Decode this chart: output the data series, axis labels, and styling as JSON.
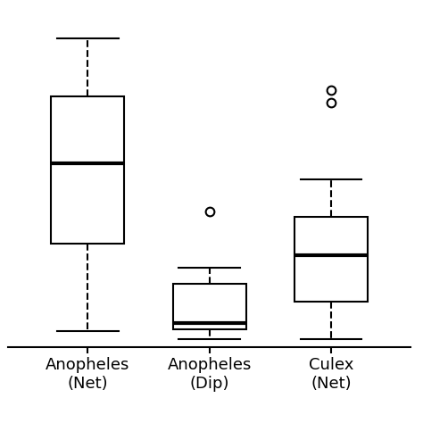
{
  "groups": [
    "Anopheles\n(Net)",
    "Anopheles\n(Dip)",
    "Culex\n(Net)"
  ],
  "boxes": [
    {
      "whisker_low": 0.03,
      "q1": 0.3,
      "median": 0.55,
      "q3": 0.76,
      "whisker_high": 0.94,
      "outliers": []
    },
    {
      "whisker_low": 0.005,
      "q1": 0.035,
      "median": 0.055,
      "q3": 0.175,
      "whisker_high": 0.225,
      "outliers": [
        0.4
      ]
    },
    {
      "whisker_low": 0.005,
      "q1": 0.12,
      "median": 0.265,
      "q3": 0.385,
      "whisker_high": 0.5,
      "outliers": [
        0.74,
        0.78
      ]
    }
  ],
  "ylim": [
    -0.02,
    1.02
  ],
  "xlim": [
    0.35,
    3.65
  ],
  "background_color": "#ffffff",
  "box_color": "#000000",
  "median_color": "#000000",
  "whisker_color": "#000000",
  "flier_color": "#000000",
  "linewidth": 1.5,
  "median_linewidth": 3.0,
  "box_width": 0.6,
  "cap_ratio": 0.42,
  "fontsize": 13
}
